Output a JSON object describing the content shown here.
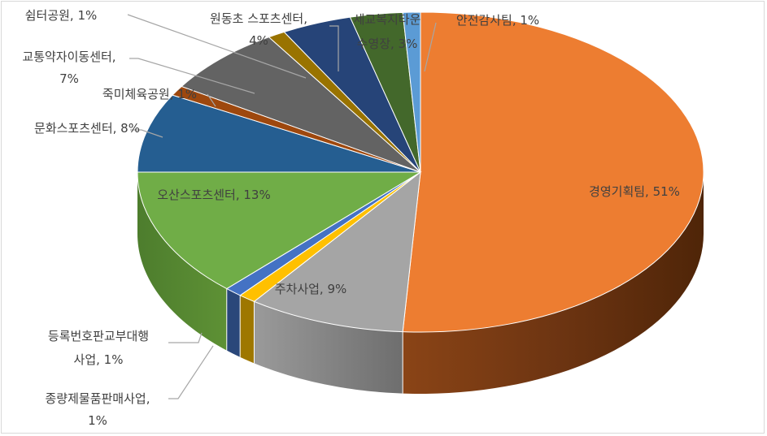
{
  "chart_data": {
    "type": "pie",
    "title": "",
    "legend": "none",
    "slices": [
      {
        "label": "경영기획팀",
        "value": 51,
        "display": "51%",
        "color": "#ED7D31"
      },
      {
        "label": "주차사업",
        "value": 9,
        "display": "9%",
        "color": "#A5A5A5"
      },
      {
        "label": "종량제물품판매사업",
        "value": 1,
        "display": "1%",
        "color": "#FFC000"
      },
      {
        "label": "등록번호판교부대행사업",
        "value": 1,
        "display": "1%",
        "color": "#4472C4"
      },
      {
        "label": "오산스포츠센터",
        "value": 13,
        "display": "13%",
        "color": "#70AD47"
      },
      {
        "label": "문화스포츠센터",
        "value": 8,
        "display": "8%",
        "color": "#255E91"
      },
      {
        "label": "쉼터공원",
        "value": 1,
        "display": "1%",
        "color": "#9E480E"
      },
      {
        "label": "교통약자이동센터",
        "value": 7,
        "display": "7%",
        "color": "#636363"
      },
      {
        "label": "죽미체육공원",
        "value": 1,
        "display": "1%",
        "color": "#997300"
      },
      {
        "label": "원동초 스포츠센터",
        "value": 4,
        "display": "4%",
        "color": "#264478"
      },
      {
        "label": "세교복지타운 수영장",
        "value": 3,
        "display": "3%",
        "color": "#43682B"
      },
      {
        "label": "안전감사팀",
        "value": 1,
        "display": "1%",
        "color": "#5B9BD5"
      }
    ],
    "labels_text": {
      "l0": [
        "경영기획팀, 51%"
      ],
      "l1": [
        "주차사업, 9%"
      ],
      "l2": [
        "종량제물품판매사업,",
        "1%"
      ],
      "l3": [
        "등록번호판교부대행",
        "사업, 1%"
      ],
      "l4": [
        "오산스포츠센터, 13%"
      ],
      "l5": [
        "문화스포츠센터, 8%"
      ],
      "l6": [
        "쉼터공원, 1%"
      ],
      "l7": [
        "교통약자이동센터,",
        "7%"
      ],
      "l8": [
        "죽미체육공원, 1%"
      ],
      "l9": [
        "원동초 스포츠센터,",
        "4%"
      ],
      "l10": [
        "세교복지타운",
        "수영장, 3%"
      ],
      "l11": [
        "안전감사팀, 1%"
      ]
    }
  }
}
